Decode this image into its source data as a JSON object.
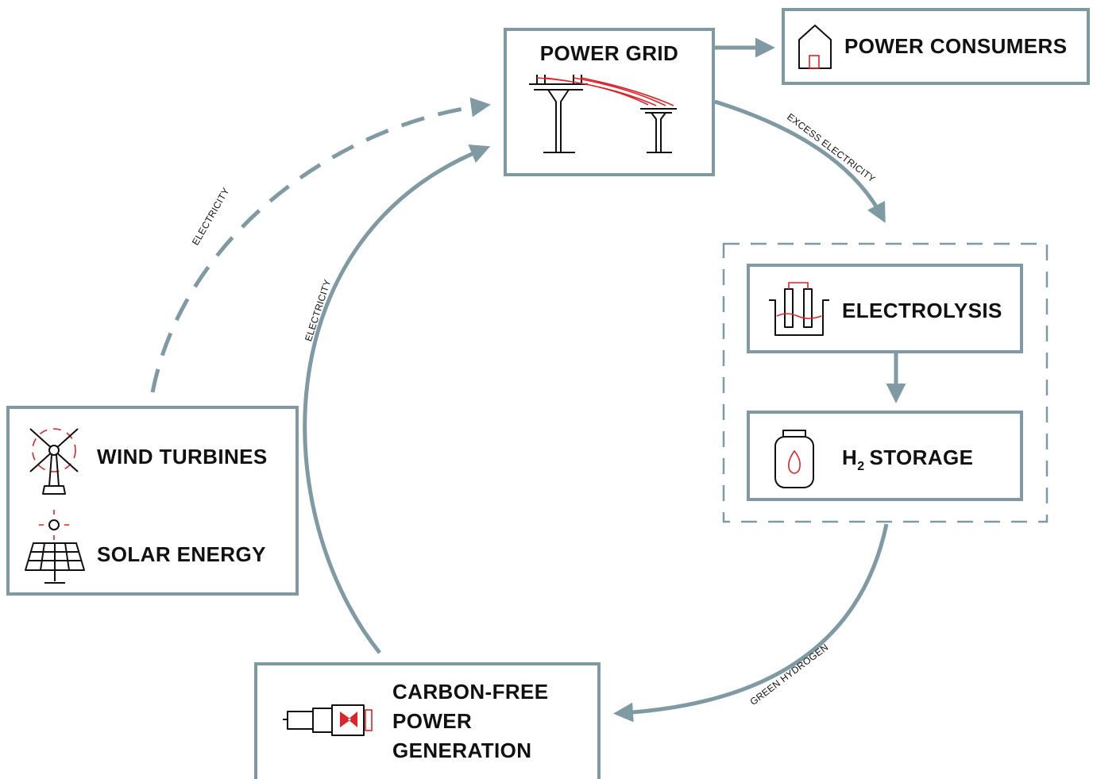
{
  "nodes": [
    {
      "id": "grid",
      "label": "POWER GRID"
    },
    {
      "id": "consumers",
      "label": "POWER CONSUMERS"
    },
    {
      "id": "electrolysis",
      "label": "ELECTROLYSIS"
    },
    {
      "id": "storage",
      "label": [
        "H",
        "2",
        "STORAGE"
      ]
    },
    {
      "id": "generation",
      "label": [
        "CARBON-FREE",
        "POWER",
        "GENERATION"
      ]
    },
    {
      "id": "wind",
      "label": "WIND TURBINES"
    },
    {
      "id": "solar",
      "label": "SOLAR ENERGY"
    }
  ],
  "edges": [
    {
      "label": "EXCESS ELECTRICITY"
    },
    {
      "label": "GREEN HYDROGEN"
    },
    {
      "label": "ELECTRICITY"
    },
    {
      "label": "ELECTRICITY"
    }
  ]
}
